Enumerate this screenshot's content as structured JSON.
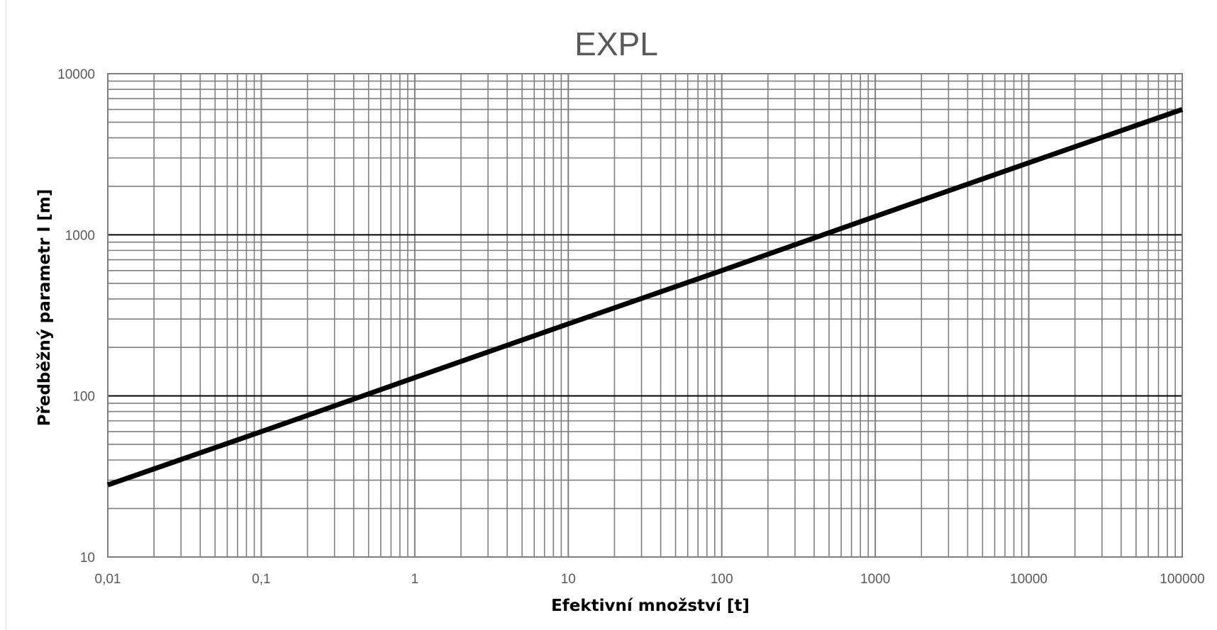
{
  "chart_data": {
    "type": "line",
    "title": "EXPL",
    "xlabel": "Efektivní množství [t]",
    "ylabel": "Předběžný parametr  l  [m]",
    "x_scale": "log",
    "y_scale": "log",
    "xlim": [
      0.01,
      100000
    ],
    "ylim": [
      10,
      10000
    ],
    "x_ticks": [
      "0,01",
      "0,1",
      "1",
      "10",
      "100",
      "1000",
      "10000",
      "100000"
    ],
    "y_ticks": [
      "10",
      "100",
      "1000",
      "10000"
    ],
    "grid": "major and minor (log)",
    "legend": "none",
    "series": [
      {
        "x": [
          0.01,
          0.1,
          1,
          10,
          100,
          1000,
          10000,
          100000
        ],
        "y": [
          28,
          60,
          130,
          280,
          600,
          1300,
          2800,
          6000
        ],
        "color": "#000000"
      }
    ]
  },
  "colors": {
    "grid_minor": "#7f7f7f",
    "grid_major": "#000000",
    "line": "#000000",
    "title": "#595959",
    "tick_text": "#595959"
  }
}
